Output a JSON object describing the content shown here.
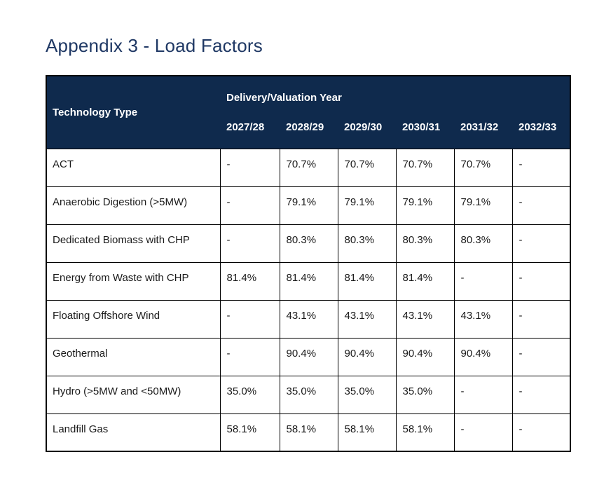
{
  "page": {
    "title": "Appendix 3 - Load Factors"
  },
  "colors": {
    "header_background": "#0f2a4d",
    "title_text": "#1f3864",
    "table_border": "#000000",
    "header_text": "#ffffff",
    "body_text": "#1a1a1a"
  },
  "table": {
    "corner_header": "Technology Type",
    "group_header": "Delivery/Valuation Year",
    "years": [
      "2027/28",
      "2028/29",
      "2029/30",
      "2030/31",
      "2031/32",
      "2032/33"
    ],
    "rows": [
      {
        "technology": "ACT",
        "values": [
          "-",
          "70.7%",
          "70.7%",
          "70.7%",
          "70.7%",
          "-"
        ]
      },
      {
        "technology": "Anaerobic Digestion (>5MW)",
        "values": [
          "-",
          "79.1%",
          "79.1%",
          "79.1%",
          "79.1%",
          "-"
        ]
      },
      {
        "technology": "Dedicated Biomass with CHP",
        "values": [
          "-",
          "80.3%",
          "80.3%",
          "80.3%",
          "80.3%",
          "-"
        ]
      },
      {
        "technology": "Energy from Waste with CHP",
        "values": [
          "81.4%",
          "81.4%",
          "81.4%",
          "81.4%",
          "-",
          "-"
        ]
      },
      {
        "technology": "Floating Offshore Wind",
        "values": [
          "-",
          "43.1%",
          "43.1%",
          "43.1%",
          "43.1%",
          "-"
        ]
      },
      {
        "technology": "Geothermal",
        "values": [
          "-",
          "90.4%",
          "90.4%",
          "90.4%",
          "90.4%",
          "-"
        ]
      },
      {
        "technology": "Hydro (>5MW and <50MW)",
        "values": [
          "35.0%",
          "35.0%",
          "35.0%",
          "35.0%",
          "-",
          "-"
        ]
      },
      {
        "technology": "Landfill Gas",
        "values": [
          "58.1%",
          "58.1%",
          "58.1%",
          "58.1%",
          "-",
          "-"
        ]
      }
    ]
  }
}
